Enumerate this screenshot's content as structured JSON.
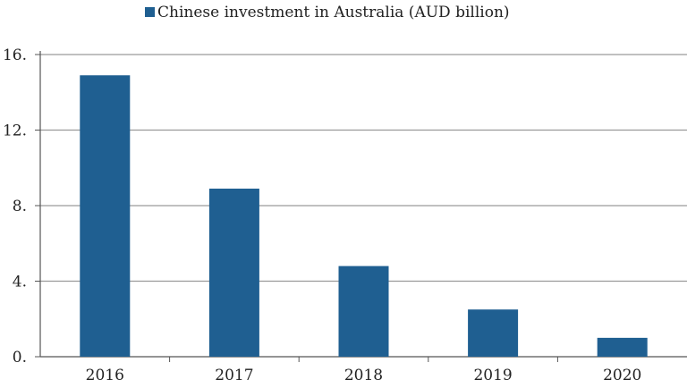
{
  "chart_data": {
    "type": "bar",
    "categories": [
      "2016",
      "2017",
      "2018",
      "2019",
      "2020"
    ],
    "series": [
      {
        "name": "Chinese investment in Australia (AUD billion)",
        "values": [
          14.9,
          8.9,
          4.8,
          2.5,
          1.0
        ],
        "color": "#1f5f91"
      }
    ],
    "yticks": [
      0,
      4,
      8,
      12,
      16
    ],
    "ytick_labels": [
      "0.",
      "4.",
      "8.",
      "12.",
      "16."
    ],
    "ylim": [
      0,
      16
    ],
    "grid": true,
    "legend": "top-center",
    "title": "",
    "xlabel": "",
    "ylabel": ""
  }
}
